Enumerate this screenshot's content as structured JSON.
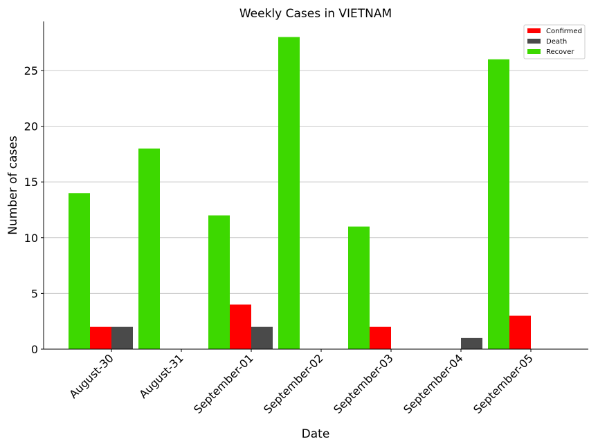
{
  "chart_data": {
    "type": "bar",
    "title": "Weekly Cases in VIETNAM",
    "xlabel": "Date",
    "ylabel": "Number of cases",
    "categories": [
      "August-30",
      "August-31",
      "September-01",
      "September-02",
      "September-03",
      "September-04",
      "September-05"
    ],
    "series": [
      {
        "name": "Confirmed",
        "color": "#ff0000",
        "values": [
          2,
          0,
          4,
          0,
          2,
          0,
          3
        ]
      },
      {
        "name": "Death",
        "color": "#4a4a4a",
        "values": [
          2,
          0,
          2,
          0,
          0,
          1,
          0
        ]
      },
      {
        "name": "Recover",
        "color": "#3dd800",
        "values": [
          14,
          18,
          12,
          28,
          11,
          0,
          26
        ]
      }
    ],
    "ylim": [
      0,
      29.4
    ],
    "yticks": [
      0,
      5,
      10,
      15,
      20,
      25
    ],
    "grid": "y",
    "legend_position": "top-right"
  }
}
